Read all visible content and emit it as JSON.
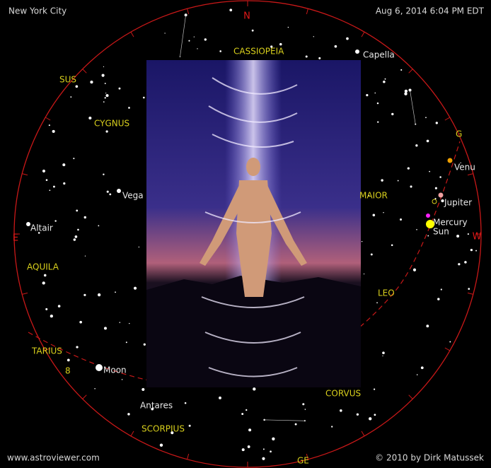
{
  "header": {
    "location": "New York City",
    "datetime": "Aug 6, 2014 6:04 PM EDT"
  },
  "compass": {
    "north": "N",
    "east": "E",
    "west": "W"
  },
  "constellations": [
    "CASSIOPEIA",
    "SUS",
    "CYGNUS",
    "AQUILA",
    "TARIUS",
    "SCORPIUS",
    "CORVUS",
    "LEO",
    "MAIOR",
    "G",
    "GE",
    "8"
  ],
  "objects": [
    "Capella",
    "Vega",
    "Altair",
    "Venu",
    "Jupiter",
    "Mercury",
    "Sun",
    "Moon",
    "Antares"
  ],
  "footer": {
    "website": "www.astroviewer.com",
    "copyright": "© 2010 by Dirk Matussek"
  }
}
